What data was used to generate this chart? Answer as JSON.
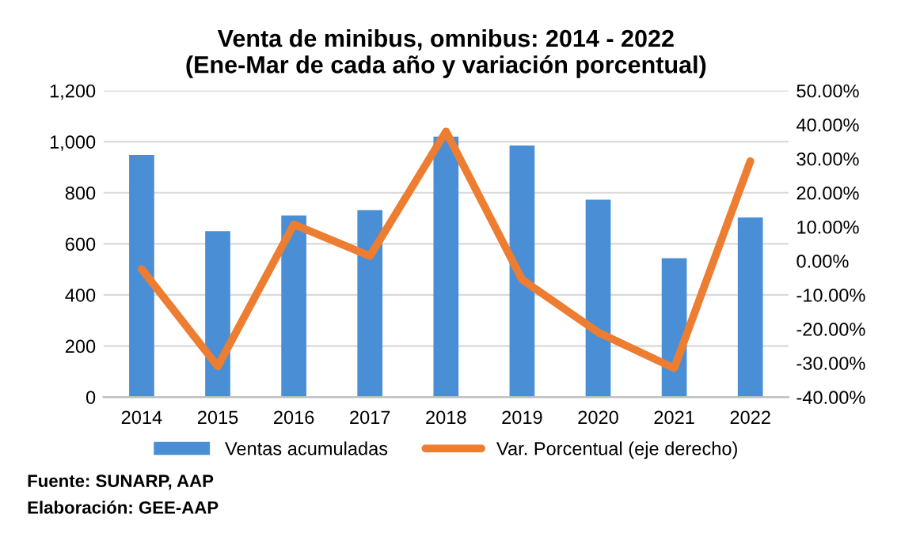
{
  "chart_data": {
    "type": "bar",
    "title": "Venta de minibus, omnibus: 2014 - 2022\n(Ene-Mar de cada año y variación porcentual)",
    "categories": [
      "2014",
      "2015",
      "2016",
      "2017",
      "2018",
      "2019",
      "2020",
      "2021",
      "2022"
    ],
    "series": [
      {
        "name": "Ventas acumuladas",
        "color": "#4a8fd6",
        "values": [
          948,
          650,
          711,
          732,
          1020,
          985,
          773,
          544,
          703
        ]
      },
      {
        "name": "Var. Porcentual (eje derecho)",
        "color": "#ed7d31",
        "type": "line",
        "axis": "y2",
        "values": [
          -2.4,
          -31,
          10.7,
          1.4,
          38,
          -5.5,
          -21,
          -31.5,
          29.3
        ]
      }
    ],
    "ylim": [
      0,
      1200
    ],
    "yticks": [
      0,
      200,
      400,
      600,
      800,
      {
        "value": 1000,
        "label": "1,000"
      },
      {
        "value": 1200,
        "label": "1,200"
      }
    ],
    "y2lim": [
      -40,
      50
    ],
    "y2ticks": [
      {
        "value": -40,
        "label": "-40.00%"
      },
      {
        "value": -30,
        "label": "-30.00%"
      },
      {
        "value": -20,
        "label": "-20.00%"
      },
      {
        "value": -10,
        "label": "-10.00%"
      },
      {
        "value": 0,
        "label": "0.00%"
      },
      {
        "value": 10,
        "label": "10.00%"
      },
      {
        "value": 20,
        "label": "20.00%"
      },
      {
        "value": 30,
        "label": "30.00%"
      },
      {
        "value": 40,
        "label": "40.00%"
      },
      {
        "value": 50,
        "label": "50.00%"
      }
    ],
    "grid": "y",
    "legend": "bottom",
    "annotations": [
      "Fuente: SUNARP, AAP",
      "Elaboración: GEE-AAP"
    ]
  }
}
